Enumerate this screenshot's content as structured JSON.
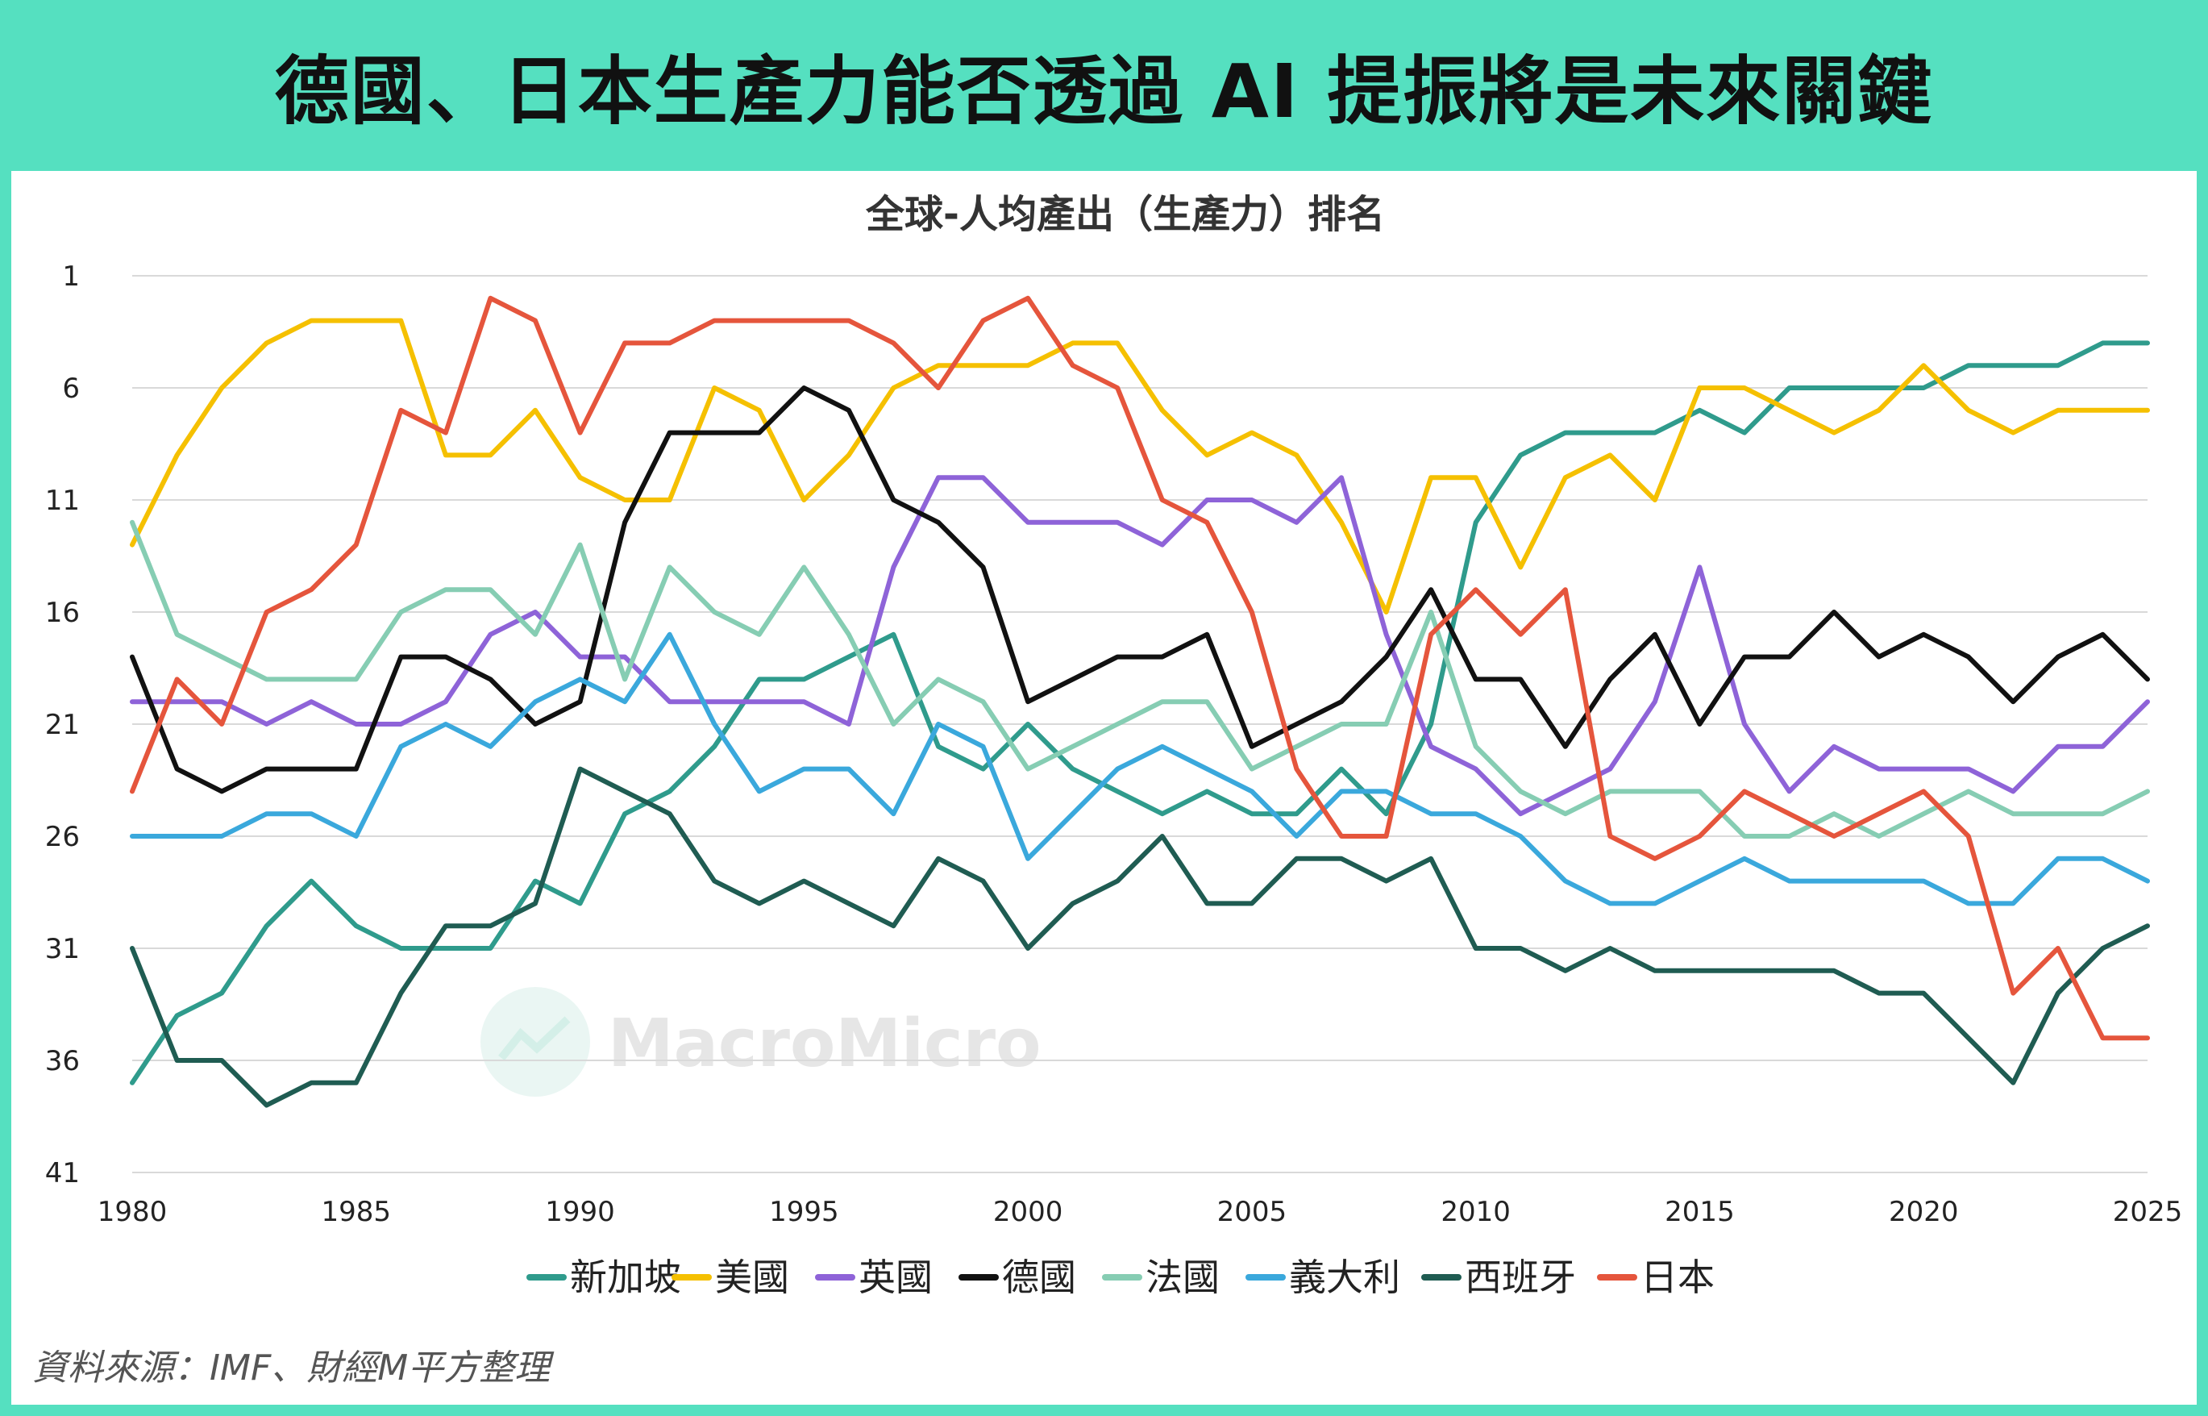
{
  "header": {
    "title": "德國、日本生產力能否透過 AI 提振將是未來關鍵"
  },
  "footer": {
    "source": "資料來源：IMF、財經M平方整理"
  },
  "watermark": {
    "text": "MacroMicro"
  },
  "chart_data": {
    "type": "line",
    "title": "全球-人均產出（生產力）排名",
    "xlabel": "",
    "ylabel": "",
    "y_reversed": true,
    "ylim": [
      1,
      41
    ],
    "xlim": [
      1980,
      2025
    ],
    "x_ticks": [
      1980,
      1985,
      1990,
      1995,
      2000,
      2005,
      2010,
      2015,
      2020,
      2025
    ],
    "y_ticks": [
      1,
      6,
      11,
      16,
      21,
      26,
      31,
      36,
      41
    ],
    "grid": "horizontal",
    "legend_position": "bottom",
    "x": [
      1980,
      1981,
      1982,
      1983,
      1984,
      1985,
      1986,
      1987,
      1988,
      1989,
      1990,
      1991,
      1992,
      1993,
      1994,
      1995,
      1996,
      1997,
      1998,
      1999,
      2000,
      2001,
      2002,
      2003,
      2004,
      2005,
      2006,
      2007,
      2008,
      2009,
      2010,
      2011,
      2012,
      2013,
      2014,
      2015,
      2016,
      2017,
      2018,
      2019,
      2020,
      2021,
      2022,
      2023,
      2024,
      2025
    ],
    "series": [
      {
        "name": "新加坡",
        "color": "#2f9b8c",
        "values": [
          37,
          34,
          33,
          30,
          28,
          30,
          31,
          31,
          31,
          28,
          29,
          25,
          24,
          22,
          19,
          19,
          18,
          17,
          22,
          23,
          21,
          23,
          24,
          25,
          24,
          25,
          25,
          23,
          25,
          21,
          12,
          9,
          8,
          8,
          8,
          7,
          8,
          6,
          6,
          6,
          6,
          5,
          5,
          5,
          4,
          4
        ]
      },
      {
        "name": "美國",
        "color": "#f5c000",
        "values": [
          13,
          9,
          6,
          4,
          3,
          3,
          3,
          9,
          9,
          7,
          10,
          11,
          11,
          6,
          7,
          11,
          9,
          6,
          5,
          5,
          5,
          4,
          4,
          7,
          9,
          8,
          9,
          12,
          16,
          10,
          10,
          14,
          10,
          9,
          11,
          6,
          6,
          7,
          8,
          7,
          5,
          7,
          8,
          7,
          7,
          7
        ]
      },
      {
        "name": "英國",
        "color": "#8e63d8",
        "values": [
          20,
          20,
          20,
          21,
          20,
          21,
          21,
          20,
          17,
          16,
          18,
          18,
          20,
          20,
          20,
          20,
          21,
          14,
          10,
          10,
          12,
          12,
          12,
          13,
          11,
          11,
          12,
          10,
          17,
          22,
          23,
          25,
          24,
          23,
          20,
          14,
          21,
          24,
          22,
          23,
          23,
          23,
          24,
          22,
          22,
          20
        ]
      },
      {
        "name": "德國",
        "color": "#111111",
        "values": [
          18,
          23,
          24,
          23,
          23,
          23,
          18,
          18,
          19,
          21,
          20,
          12,
          8,
          8,
          8,
          6,
          7,
          11,
          12,
          14,
          20,
          19,
          18,
          18,
          17,
          22,
          21,
          20,
          18,
          15,
          19,
          19,
          22,
          19,
          17,
          21,
          18,
          18,
          16,
          18,
          17,
          18,
          20,
          18,
          17,
          19
        ]
      },
      {
        "name": "法國",
        "color": "#86cdb3",
        "values": [
          12,
          17,
          18,
          19,
          19,
          19,
          16,
          15,
          15,
          17,
          13,
          19,
          14,
          16,
          17,
          14,
          17,
          21,
          19,
          20,
          23,
          22,
          21,
          20,
          20,
          23,
          22,
          21,
          21,
          16,
          22,
          24,
          25,
          24,
          24,
          24,
          26,
          26,
          25,
          26,
          25,
          24,
          25,
          25,
          25,
          24
        ]
      },
      {
        "name": "義大利",
        "color": "#3aa8dc",
        "values": [
          26,
          26,
          26,
          25,
          25,
          26,
          22,
          21,
          22,
          20,
          19,
          20,
          17,
          21,
          24,
          23,
          23,
          25,
          21,
          22,
          27,
          25,
          23,
          22,
          23,
          24,
          26,
          24,
          24,
          25,
          25,
          26,
          28,
          29,
          29,
          28,
          27,
          28,
          28,
          28,
          28,
          29,
          29,
          27,
          27,
          28
        ]
      },
      {
        "name": "西班牙",
        "color": "#1f5c52",
        "values": [
          31,
          36,
          36,
          38,
          37,
          37,
          33,
          30,
          30,
          29,
          23,
          24,
          25,
          28,
          29,
          28,
          29,
          30,
          27,
          28,
          31,
          29,
          28,
          26,
          29,
          29,
          27,
          27,
          28,
          27,
          31,
          31,
          32,
          31,
          32,
          32,
          32,
          32,
          32,
          33,
          33,
          35,
          37,
          33,
          31,
          30
        ]
      },
      {
        "name": "日本",
        "color": "#e5553c",
        "values": [
          24,
          19,
          21,
          16,
          15,
          13,
          7,
          8,
          2,
          3,
          8,
          4,
          4,
          3,
          3,
          3,
          3,
          4,
          6,
          3,
          2,
          5,
          6,
          11,
          12,
          16,
          23,
          26,
          26,
          17,
          15,
          17,
          15,
          26,
          27,
          26,
          24,
          25,
          26,
          25,
          24,
          26,
          33,
          31,
          35,
          35
        ]
      }
    ]
  }
}
